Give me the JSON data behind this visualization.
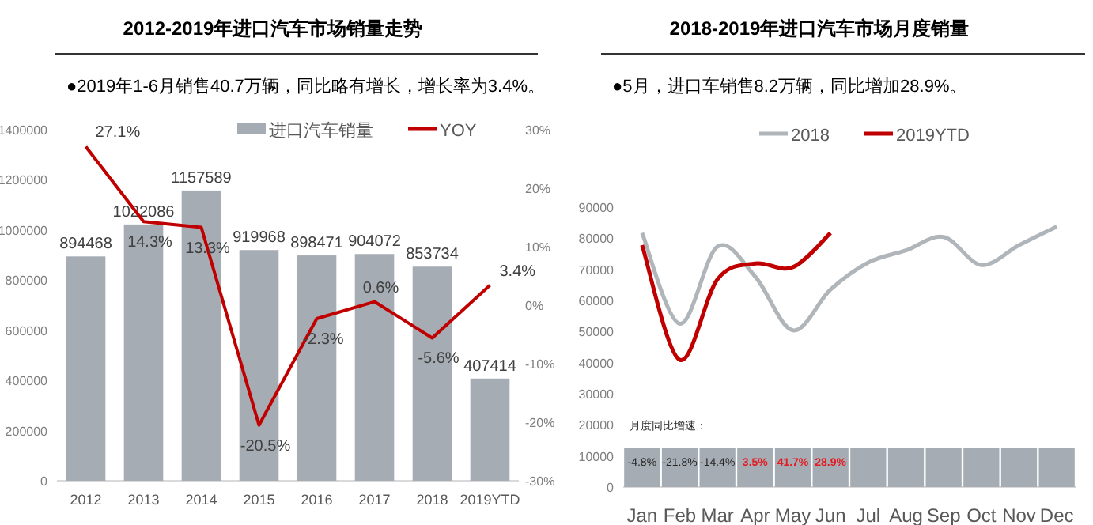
{
  "chart_data": [
    {
      "type": "bar",
      "title": "2012-2019年进口汽车市场销量走势",
      "subtitle": "●2019年1-6月销售40.7万辆，同比略有增长，增长率为3.4%。",
      "categories": [
        "2012",
        "2013",
        "2014",
        "2015",
        "2016",
        "2017",
        "2018",
        "2019YTD"
      ],
      "series": [
        {
          "name": "进口汽车销量",
          "type": "bar",
          "color": "#a6acb3",
          "values": [
            894468,
            1022086,
            1157589,
            919968,
            898471,
            904072,
            853734,
            407414
          ],
          "value_labels": [
            "894468",
            "1022086",
            "1157589",
            "919968",
            "898471",
            "904072",
            "853734",
            "407414"
          ]
        },
        {
          "name": "YOY",
          "type": "line",
          "axis": "y2",
          "color": "#c00000",
          "values": [
            27.1,
            14.3,
            13.3,
            -20.5,
            -2.3,
            0.6,
            -5.6,
            3.4
          ],
          "value_labels": [
            "27.1%",
            "14.3%",
            "13.3%",
            "-20.5%",
            "-2.3%",
            "0.6%",
            "-5.6%",
            "3.4%"
          ]
        }
      ],
      "ylim": [
        0,
        1400000
      ],
      "yticks": [
        0,
        200000,
        400000,
        600000,
        800000,
        1000000,
        1200000,
        1400000
      ],
      "y2lim": [
        -30,
        30
      ],
      "y2ticks": [
        {
          "value": -30,
          "label": "-30%"
        },
        {
          "value": -20,
          "label": "-20%"
        },
        {
          "value": -10,
          "label": "-10%"
        },
        {
          "value": 0,
          "label": "0%"
        },
        {
          "value": 10,
          "label": "10%"
        },
        {
          "value": 20,
          "label": "20%"
        },
        {
          "value": 30,
          "label": "30%"
        }
      ],
      "legend": "top",
      "grid": false
    },
    {
      "type": "line",
      "title": "2018-2019年进口汽车市场月度销量",
      "subtitle": "●5月，进口车销售8.2万辆，同比增加28.9%。",
      "categories": [
        "Jan",
        "Feb",
        "Mar",
        "Apr",
        "May",
        "Jun",
        "Jul",
        "Aug",
        "Sep",
        "Oct",
        "Nov",
        "Dec"
      ],
      "series": [
        {
          "name": "2018",
          "color": "#b0b5ba",
          "values": [
            81700,
            52500,
            77300,
            67700,
            50400,
            63500,
            72200,
            76100,
            80400,
            71400,
            77800,
            83800
          ]
        },
        {
          "name": "2019YTD",
          "color": "#c00000",
          "values": [
            77800,
            40900,
            66800,
            71900,
            70700,
            81700,
            null,
            null,
            null,
            null,
            null,
            null
          ]
        },
        {
          "type": "bar",
          "color": "#a6acb3",
          "values": [
            12500,
            12500,
            12500,
            12500,
            12500,
            12500,
            12500,
            12500,
            12500,
            12500,
            12500,
            12500
          ]
        }
      ],
      "ylim": [
        0,
        90000
      ],
      "yticks": [
        0,
        10000,
        20000,
        30000,
        40000,
        50000,
        60000,
        70000,
        80000,
        90000
      ],
      "annotations": [
        "月度同比增速：",
        "-4.8%",
        "-21.8%",
        "-14.4%",
        "3.5%",
        "41.7%",
        "28.9%"
      ],
      "legend": "top",
      "grid": false
    }
  ]
}
